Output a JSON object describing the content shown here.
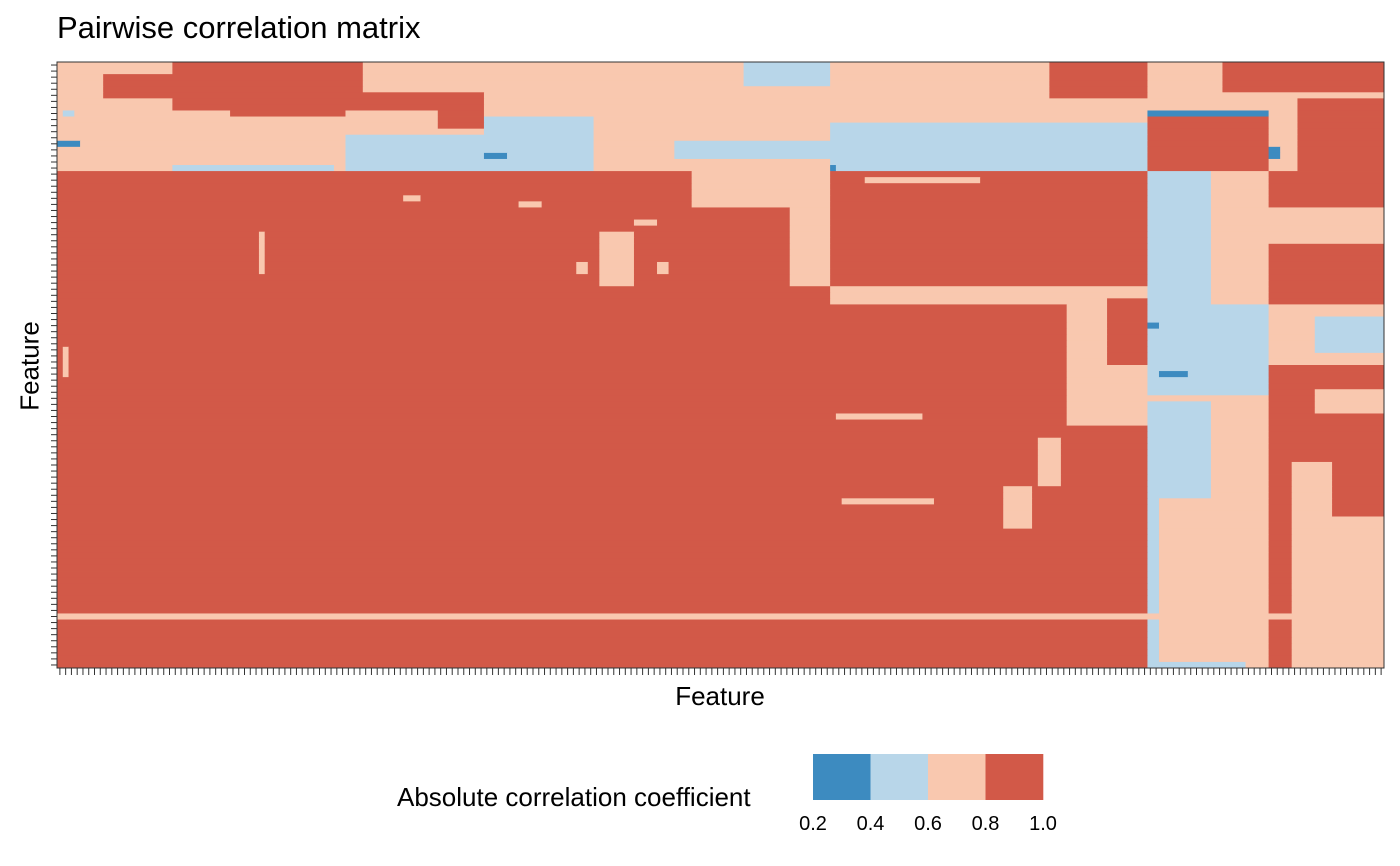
{
  "chart_data": {
    "type": "heatmap",
    "title": "Pairwise correlation matrix",
    "xlabel": "Feature",
    "ylabel": "Feature",
    "grid": false,
    "x_tick_labels_shown": false,
    "y_tick_labels_shown": false,
    "features": {
      "count_x": 230,
      "count_y": 100
    },
    "color_scale": {
      "title": "Absolute correlation coefficient",
      "type": "binned",
      "breaks": [
        "0.2",
        "0.4",
        "0.6",
        "0.8",
        "1.0"
      ],
      "colors": [
        "#3d8bc0",
        "#b8d6e9",
        "#f9c8af",
        "#d25948"
      ],
      "legend_position": "bottom"
    },
    "cell_bins": {
      "description_scale": "bin index 0..3 corresponds to [0.2,0.4),[0.4,0.6),[0.6,0.8),[0.8,1.0]",
      "background_bin": 3,
      "regions": [
        {
          "rows": [
            0,
            18
          ],
          "cols": [
            0,
            230
          ],
          "bin": 2
        },
        {
          "rows": [
            0,
            8
          ],
          "cols": [
            20,
            74
          ],
          "bin": 3
        },
        {
          "rows": [
            0,
            5
          ],
          "cols": [
            53,
            74
          ],
          "bin": 2
        },
        {
          "rows": [
            0,
            18
          ],
          "cols": [
            74,
            134
          ],
          "bin": 2
        },
        {
          "rows": [
            0,
            4
          ],
          "cols": [
            119,
            134
          ],
          "bin": 1
        },
        {
          "rows": [
            9,
            18
          ],
          "cols": [
            74,
            93
          ],
          "bin": 1
        },
        {
          "rows": [
            12,
            18
          ],
          "cols": [
            50,
            93
          ],
          "bin": 1
        },
        {
          "rows": [
            13,
            16
          ],
          "cols": [
            107,
            134
          ],
          "bin": 1
        },
        {
          "rows": [
            0,
            18
          ],
          "cols": [
            134,
            189
          ],
          "bin": 2
        },
        {
          "rows": [
            10,
            18
          ],
          "cols": [
            134,
            189
          ],
          "bin": 1
        },
        {
          "rows": [
            0,
            6
          ],
          "cols": [
            172,
            189
          ],
          "bin": 3
        },
        {
          "rows": [
            0,
            18
          ],
          "cols": [
            189,
            230
          ],
          "bin": 2
        },
        {
          "rows": [
            0,
            5
          ],
          "cols": [
            202,
            230
          ],
          "bin": 3
        },
        {
          "rows": [
            9,
            18
          ],
          "cols": [
            189,
            210
          ],
          "bin": 3
        },
        {
          "rows": [
            8,
            9
          ],
          "cols": [
            189,
            210
          ],
          "bin": 0
        },
        {
          "rows": [
            6,
            18
          ],
          "cols": [
            215,
            230
          ],
          "bin": 3
        },
        {
          "rows": [
            18,
            100
          ],
          "cols": [
            0,
            134
          ],
          "bin": 3
        },
        {
          "rows": [
            18,
            24
          ],
          "cols": [
            110,
            134
          ],
          "bin": 2
        },
        {
          "rows": [
            24,
            37
          ],
          "cols": [
            127,
            134
          ],
          "bin": 2
        },
        {
          "rows": [
            18,
            37
          ],
          "cols": [
            134,
            189
          ],
          "bin": 3
        },
        {
          "rows": [
            37,
            100
          ],
          "cols": [
            134,
            189
          ],
          "bin": 3
        },
        {
          "rows": [
            37,
            40
          ],
          "cols": [
            134,
            189
          ],
          "bin": 2
        },
        {
          "rows": [
            39,
            60
          ],
          "cols": [
            175,
            189
          ],
          "bin": 2
        },
        {
          "rows": [
            39,
            50
          ],
          "cols": [
            182,
            189
          ],
          "bin": 3
        },
        {
          "rows": [
            58,
            59
          ],
          "cols": [
            135,
            150
          ],
          "bin": 2
        },
        {
          "rows": [
            18,
            100
          ],
          "cols": [
            189,
            230
          ],
          "bin": 2
        },
        {
          "rows": [
            18,
            40
          ],
          "cols": [
            189,
            200
          ],
          "bin": 1
        },
        {
          "rows": [
            40,
            55
          ],
          "cols": [
            189,
            210
          ],
          "bin": 1
        },
        {
          "rows": [
            56,
            72
          ],
          "cols": [
            189,
            200
          ],
          "bin": 1
        },
        {
          "rows": [
            72,
            100
          ],
          "cols": [
            189,
            191
          ],
          "bin": 1
        },
        {
          "rows": [
            18,
            40
          ],
          "cols": [
            210,
            230
          ],
          "bin": 3
        },
        {
          "rows": [
            24,
            30
          ],
          "cols": [
            210,
            230
          ],
          "bin": 2
        },
        {
          "rows": [
            42,
            48
          ],
          "cols": [
            218,
            230
          ],
          "bin": 1
        },
        {
          "rows": [
            50,
            66
          ],
          "cols": [
            210,
            230
          ],
          "bin": 3
        },
        {
          "rows": [
            54,
            58
          ],
          "cols": [
            218,
            230
          ],
          "bin": 2
        },
        {
          "rows": [
            66,
            100
          ],
          "cols": [
            210,
            214
          ],
          "bin": 3
        },
        {
          "rows": [
            60,
            75
          ],
          "cols": [
            221,
            230
          ],
          "bin": 3
        }
      ],
      "strips": [
        {
          "rows": [
            19,
            20
          ],
          "cols": [
            140,
            160
          ],
          "bin": 2
        },
        {
          "rows": [
            22,
            23
          ],
          "cols": [
            60,
            63
          ],
          "bin": 2
        },
        {
          "rows": [
            23,
            24
          ],
          "cols": [
            80,
            84
          ],
          "bin": 2
        },
        {
          "rows": [
            26,
            27
          ],
          "cols": [
            100,
            104
          ],
          "bin": 2
        },
        {
          "rows": [
            33,
            35
          ],
          "cols": [
            90,
            92
          ],
          "bin": 2
        },
        {
          "rows": [
            33,
            35
          ],
          "cols": [
            104,
            106
          ],
          "bin": 2
        },
        {
          "rows": [
            28,
            35
          ],
          "cols": [
            35,
            36
          ],
          "bin": 2
        },
        {
          "rows": [
            28,
            37
          ],
          "cols": [
            94,
            100
          ],
          "bin": 2
        },
        {
          "rows": [
            47,
            52
          ],
          "cols": [
            1,
            2
          ],
          "bin": 2
        },
        {
          "rows": [
            72,
            73
          ],
          "cols": [
            136,
            152
          ],
          "bin": 2
        },
        {
          "rows": [
            91,
            92
          ],
          "cols": [
            0,
            230
          ],
          "bin": 2
        },
        {
          "rows": [
            43,
            44
          ],
          "cols": [
            189,
            191
          ],
          "bin": 0
        },
        {
          "rows": [
            51,
            52
          ],
          "cols": [
            191,
            196
          ],
          "bin": 0
        },
        {
          "rows": [
            60,
            61
          ],
          "cols": [
            190,
            195
          ],
          "bin": 1
        },
        {
          "rows": [
            99,
            100
          ],
          "cols": [
            191,
            206
          ],
          "bin": 1
        },
        {
          "rows": [
            17,
            18
          ],
          "cols": [
            20,
            48
          ],
          "bin": 1
        },
        {
          "rows": [
            13,
            14
          ],
          "cols": [
            0,
            4
          ],
          "bin": 0
        },
        {
          "rows": [
            15,
            16
          ],
          "cols": [
            74,
            78
          ],
          "bin": 0
        },
        {
          "rows": [
            14,
            16
          ],
          "cols": [
            210,
            212
          ],
          "bin": 0
        },
        {
          "rows": [
            8,
            9
          ],
          "cols": [
            1,
            3
          ],
          "bin": 1
        },
        {
          "rows": [
            17,
            18
          ],
          "cols": [
            134,
            135
          ],
          "bin": 0
        },
        {
          "rows": [
            70,
            77
          ],
          "cols": [
            164,
            169
          ],
          "bin": 2
        },
        {
          "rows": [
            62,
            70
          ],
          "cols": [
            170,
            174
          ],
          "bin": 2
        },
        {
          "rows": [
            5,
            9
          ],
          "cols": [
            30,
            50
          ],
          "bin": 3
        },
        {
          "rows": [
            2,
            6
          ],
          "cols": [
            8,
            20
          ],
          "bin": 3
        },
        {
          "rows": [
            8,
            11
          ],
          "cols": [
            66,
            74
          ],
          "bin": 3
        }
      ]
    }
  }
}
